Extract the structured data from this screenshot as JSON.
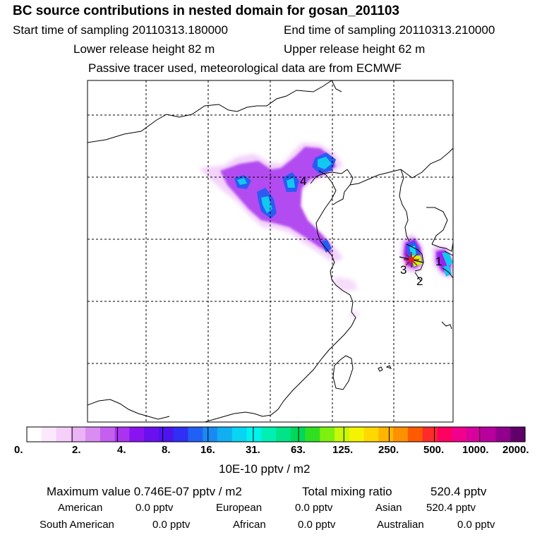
{
  "header": {
    "title": "BC  source contributions in nested domain for gosan_201103",
    "start_label": "Start time of sampling 20110313.180000",
    "end_label": "End time of sampling 20110313.210000",
    "lower_label": "Lower release height   82 m",
    "upper_label": "Upper release height   62 m",
    "note": "Passive tracer used, meteorological data are from ECMWF"
  },
  "chart_data": {
    "type": "heatmap",
    "title": "BC  source contributions in nested domain for gosan_201103",
    "colorbar": {
      "tick_labels": [
        "0.",
        "2.",
        "4.",
        "8.",
        "16.",
        "31.",
        "63.",
        "125.",
        "250.",
        "500.",
        "1000.",
        "2000."
      ],
      "unit": "10E-10 pptv / m2",
      "colors": [
        "#ffffff",
        "#fbe8fd",
        "#f5cff9",
        "#eab3f5",
        "#d98cf2",
        "#c45fef",
        "#aa33ef",
        "#8a14f0",
        "#6a10ee",
        "#4d14f0",
        "#2f30f3",
        "#2060f5",
        "#1a8af3",
        "#12aef2",
        "#08d5f2",
        "#00f4ec",
        "#00f0b4",
        "#00e488",
        "#00d85a",
        "#30e020",
        "#7ef010",
        "#c8f808",
        "#f4f400",
        "#ffd800",
        "#ffb400",
        "#ff9000",
        "#ff5a00",
        "#ff2a2a",
        "#ff0060",
        "#f0008c",
        "#d8009e",
        "#b8009e",
        "#90008c",
        "#600068"
      ]
    },
    "map_labels": [
      {
        "id": "1",
        "text": "1"
      },
      {
        "id": "2",
        "text": "2"
      },
      {
        "id": "3",
        "text": "3"
      },
      {
        "id": "4",
        "text": "4"
      }
    ],
    "grid": true
  },
  "stats": {
    "max_label": "Maximum value  0.746E-07 pptv / m2",
    "total_label": "Total mixing ratio",
    "total_value": "520.4 pptv",
    "american_label": "American",
    "american_value": "0.0 pptv",
    "european_label": "European",
    "european_value": "0.0 pptv",
    "asian_label": "Asian",
    "asian_value": "520.4 pptv",
    "south_american_label": "South American",
    "south_american_value": "0.0 pptv",
    "african_label": "African",
    "african_value": "0.0 pptv",
    "australian_label": "Australian",
    "australian_value": "0.0 pptv"
  }
}
